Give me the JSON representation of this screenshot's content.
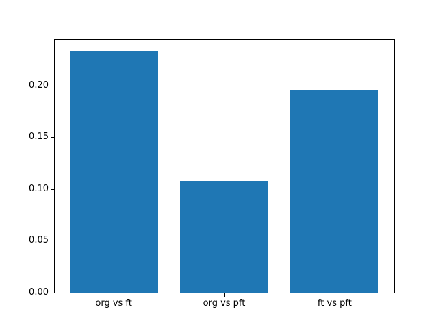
{
  "chart_data": {
    "type": "bar",
    "categories": [
      "org vs ft",
      "org vs pft",
      "ft vs pft"
    ],
    "values": [
      0.233,
      0.108,
      0.196
    ],
    "title": "",
    "xlabel": "",
    "ylabel": "",
    "ylim": [
      0,
      0.2447
    ],
    "yticks": [
      0.0,
      0.05,
      0.1,
      0.15,
      0.2
    ],
    "ytick_labels": [
      "0.00",
      "0.05",
      "0.10",
      "0.15",
      "0.20"
    ],
    "bar_color": "#1f77b4",
    "grid": false,
    "legend_position": "none",
    "background_color": "#ffffff",
    "axis_color": "#000000"
  }
}
